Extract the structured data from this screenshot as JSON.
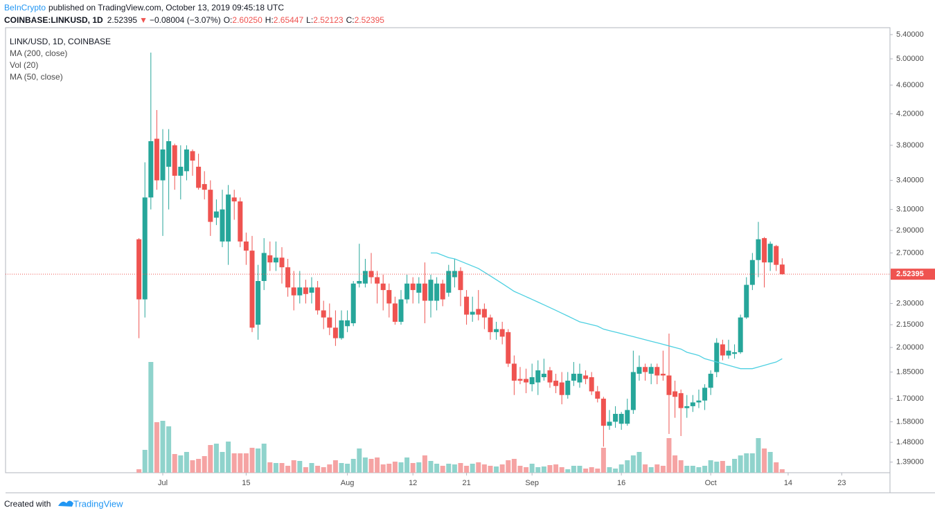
{
  "chart_data": {
    "type": "candlestick",
    "publisher": "BeInCrypto",
    "published": "published on TradingView.com, October 13, 2019 09:45:18 UTC",
    "quote": {
      "symbol": "COINBASE:LINKUSD, 1D",
      "last": "2.52395",
      "arrow": "▼",
      "change": "−0.08004 (−3.07%)",
      "o_label": "O:",
      "o": "2.60250",
      "h_label": "H:",
      "h": "2.65447",
      "l_label": "L:",
      "l": "2.52123",
      "c_label": "C:",
      "c": "2.52395"
    },
    "indicators": [
      "LINK/USD, 1D, COINBASE",
      "MA (200, close)",
      "Vol (20)",
      "MA (50, close)"
    ],
    "footer": {
      "text": "Created with",
      "brand": "TradingView"
    },
    "log_scale": true,
    "up_color": "#26a69a",
    "down_color": "#ef5350",
    "up_volume_color": "#8fd3cc",
    "down_volume_color": "#f5a3a3",
    "ylim": [
      1.344,
      5.52
    ],
    "yticks": [
      {
        "value": 5.4,
        "label": "5.40000"
      },
      {
        "value": 5.0,
        "label": "5.00000"
      },
      {
        "value": 4.6,
        "label": "4.60000"
      },
      {
        "value": 4.2,
        "label": "4.20000"
      },
      {
        "value": 3.8,
        "label": "3.80000"
      },
      {
        "value": 3.4,
        "label": "3.40000"
      },
      {
        "value": 3.1,
        "label": "3.10000"
      },
      {
        "value": 2.9,
        "label": "2.90000"
      },
      {
        "value": 2.7,
        "label": "2.70000"
      },
      {
        "value": 2.3,
        "label": "2.30000"
      },
      {
        "value": 2.15,
        "label": "2.15000"
      },
      {
        "value": 2.0,
        "label": "2.00000"
      },
      {
        "value": 1.85,
        "label": "1.85000"
      },
      {
        "value": 1.7,
        "label": "1.70000"
      },
      {
        "value": 1.58,
        "label": "1.58000"
      },
      {
        "value": 1.48,
        "label": "1.48000"
      },
      {
        "value": 1.39,
        "label": "1.39000"
      }
    ],
    "xlim": [
      -26.4,
      122.1
    ],
    "xticks": [
      {
        "value": 0,
        "label": "Jul"
      },
      {
        "value": 14,
        "label": "15"
      },
      {
        "value": 31,
        "label": "Aug"
      },
      {
        "value": 42,
        "label": "12"
      },
      {
        "value": 51,
        "label": "21"
      },
      {
        "value": 62,
        "label": "Sep"
      },
      {
        "value": 77,
        "label": "16"
      },
      {
        "value": 92,
        "label": "Oct"
      },
      {
        "value": 105,
        "label": "14"
      },
      {
        "value": 114,
        "label": "23"
      }
    ],
    "last_price": {
      "value": 2.52395,
      "label": "2.52395",
      "color": "#ef5350"
    },
    "x": [
      -4,
      -3,
      -2,
      -1,
      0,
      1,
      2,
      3,
      4,
      5,
      6,
      7,
      8,
      9,
      10,
      11,
      12,
      13,
      14,
      15,
      16,
      17,
      18,
      19,
      20,
      21,
      22,
      23,
      24,
      25,
      26,
      27,
      28,
      29,
      30,
      31,
      32,
      33,
      34,
      35,
      36,
      37,
      38,
      39,
      40,
      41,
      42,
      43,
      44,
      45,
      46,
      47,
      48,
      49,
      50,
      51,
      52,
      53,
      54,
      55,
      56,
      57,
      58,
      59,
      60,
      61,
      62,
      63,
      64,
      65,
      66,
      67,
      68,
      69,
      70,
      71,
      72,
      73,
      74,
      75,
      76,
      77,
      78,
      79,
      80,
      81,
      82,
      83,
      84,
      85,
      86,
      87,
      88,
      89,
      90,
      91,
      92,
      93,
      94,
      95,
      96,
      97,
      98,
      99,
      100,
      101,
      102,
      103,
      104
    ],
    "open": [
      2.82,
      2.33,
      3.22,
      3.88,
      3.4,
      3.55,
      3.8,
      3.45,
      3.5,
      3.73,
      3.55,
      3.36,
      3.3,
      3.02,
      2.8,
      2.8,
      3.22,
      3.18,
      2.8,
      2.72,
      2.15,
      2.47,
      2.68,
      2.62,
      2.66,
      2.58,
      2.42,
      2.36,
      2.42,
      2.38,
      2.42,
      2.25,
      2.2,
      2.13,
      2.06,
      2.14,
      2.16,
      2.45,
      2.45,
      2.55,
      2.5,
      2.45,
      2.4,
      2.3,
      2.17,
      2.33,
      2.45,
      2.38,
      2.45,
      2.32,
      2.32,
      2.45,
      2.38,
      2.5,
      2.55,
      2.35,
      2.22,
      2.26,
      2.26,
      2.2,
      2.1,
      2.12,
      2.1,
      1.9,
      1.81,
      1.81,
      1.78,
      1.79,
      1.82,
      1.86,
      1.8,
      1.79,
      1.72,
      1.8,
      1.79,
      1.83,
      1.82,
      1.74,
      1.7,
      1.56,
      1.58,
      1.57,
      1.57,
      1.64,
      1.84,
      1.88,
      1.84,
      1.88,
      1.84,
      1.83,
      1.74,
      1.73,
      1.65,
      1.66,
      1.68,
      1.69,
      1.76,
      1.85,
      2.02,
      1.95,
      1.96,
      1.97,
      2.2,
      2.44,
      2.64,
      2.83,
      2.62,
      2.76,
      2.6025
    ],
    "high": [
      2.83,
      3.6,
      5.1,
      4.25,
      4.0,
      4.0,
      3.82,
      3.8,
      3.8,
      3.75,
      3.7,
      3.5,
      3.4,
      3.2,
      3.3,
      3.35,
      3.3,
      3.22,
      2.88,
      2.85,
      2.6,
      2.83,
      2.8,
      2.8,
      2.75,
      2.65,
      2.55,
      2.55,
      2.48,
      2.5,
      2.47,
      2.32,
      2.3,
      2.25,
      2.25,
      2.25,
      2.47,
      2.78,
      2.65,
      2.7,
      2.55,
      2.52,
      2.45,
      2.35,
      2.4,
      2.52,
      2.5,
      2.5,
      2.62,
      2.52,
      2.5,
      2.48,
      2.6,
      2.65,
      2.58,
      2.4,
      2.35,
      2.4,
      2.3,
      2.22,
      2.17,
      2.17,
      2.12,
      1.95,
      1.88,
      1.87,
      1.9,
      1.92,
      1.93,
      1.88,
      1.84,
      1.85,
      1.85,
      1.91,
      1.9,
      1.86,
      1.85,
      1.77,
      1.71,
      1.64,
      1.66,
      1.63,
      1.7,
      1.98,
      1.95,
      1.9,
      1.9,
      1.9,
      1.98,
      2.09,
      1.8,
      1.75,
      1.72,
      1.72,
      1.75,
      1.78,
      1.86,
      2.06,
      2.05,
      2.05,
      2.02,
      2.22,
      2.5,
      2.7,
      2.98,
      2.84,
      2.8,
      2.77,
      2.65447
    ],
    "low": [
      2.06,
      2.2,
      3.1,
      3.3,
      2.85,
      3.1,
      3.3,
      3.2,
      3.4,
      3.45,
      3.3,
      3.2,
      2.85,
      2.95,
      2.75,
      2.6,
      3.0,
      2.75,
      2.6,
      2.1,
      2.05,
      2.4,
      2.55,
      2.55,
      2.45,
      2.35,
      2.25,
      2.3,
      2.3,
      2.3,
      2.22,
      2.12,
      2.08,
      2.01,
      2.05,
      2.1,
      2.14,
      2.42,
      2.42,
      2.45,
      2.3,
      2.25,
      2.2,
      2.15,
      2.15,
      2.3,
      2.3,
      2.3,
      2.16,
      2.2,
      2.25,
      2.28,
      2.35,
      2.42,
      2.28,
      2.15,
      2.17,
      2.18,
      2.12,
      2.05,
      2.05,
      2.02,
      1.88,
      1.72,
      1.78,
      1.73,
      1.74,
      1.72,
      1.8,
      1.76,
      1.73,
      1.67,
      1.7,
      1.77,
      1.76,
      1.78,
      1.72,
      1.68,
      1.46,
      1.54,
      1.55,
      1.54,
      1.56,
      1.62,
      1.8,
      1.8,
      1.78,
      1.78,
      1.8,
      1.52,
      1.6,
      1.51,
      1.6,
      1.63,
      1.65,
      1.64,
      1.72,
      1.82,
      1.92,
      1.93,
      1.93,
      1.96,
      2.19,
      2.4,
      2.5,
      2.42,
      2.55,
      2.55,
      2.52123
    ],
    "close": [
      2.33,
      3.22,
      3.85,
      3.4,
      3.75,
      3.85,
      3.45,
      3.55,
      3.75,
      3.62,
      3.32,
      3.3,
      2.98,
      3.08,
      3.1,
      3.25,
      3.18,
      2.8,
      2.72,
      2.13,
      2.47,
      2.7,
      2.62,
      2.66,
      2.58,
      2.42,
      2.36,
      2.42,
      2.37,
      2.42,
      2.25,
      2.2,
      2.13,
      2.06,
      2.18,
      2.18,
      2.45,
      2.47,
      2.55,
      2.5,
      2.45,
      2.4,
      2.3,
      2.17,
      2.33,
      2.45,
      2.4,
      2.45,
      2.32,
      2.48,
      2.45,
      2.33,
      2.55,
      2.55,
      2.4,
      2.22,
      2.24,
      2.22,
      2.2,
      2.1,
      2.12,
      2.07,
      1.9,
      1.8,
      1.8,
      1.79,
      1.82,
      1.86,
      1.84,
      1.79,
      1.77,
      1.72,
      1.8,
      1.84,
      1.84,
      1.81,
      1.74,
      1.7,
      1.56,
      1.58,
      1.62,
      1.62,
      1.64,
      1.85,
      1.88,
      1.85,
      1.88,
      1.83,
      1.83,
      1.72,
      1.71,
      1.65,
      1.66,
      1.68,
      1.69,
      1.76,
      1.84,
      2.03,
      1.95,
      1.98,
      1.97,
      2.2,
      2.44,
      2.64,
      2.82,
      2.62,
      2.78,
      2.6,
      2.52395
    ],
    "volume": [
      5,
      33,
      160,
      73,
      75,
      67,
      27,
      25,
      30,
      18,
      20,
      24,
      40,
      42,
      30,
      45,
      28,
      28,
      28,
      36,
      35,
      42,
      15,
      14,
      14,
      10,
      18,
      17,
      8,
      14,
      10,
      8,
      12,
      18,
      14,
      13,
      20,
      35,
      22,
      20,
      22,
      12,
      13,
      16,
      15,
      22,
      14,
      15,
      25,
      17,
      13,
      10,
      13,
      12,
      14,
      10,
      13,
      15,
      12,
      10,
      9,
      12,
      18,
      20,
      10,
      8,
      13,
      8,
      9,
      11,
      12,
      8,
      5,
      10,
      10,
      6,
      8,
      6,
      36,
      8,
      6,
      12,
      18,
      25,
      30,
      12,
      8,
      12,
      10,
      50,
      25,
      18,
      10,
      10,
      8,
      10,
      18,
      16,
      17,
      10,
      20,
      25,
      28,
      28,
      50,
      35,
      30,
      15,
      5
    ],
    "ma": {
      "color": "#4dd0e1",
      "values": [
        null,
        null,
        null,
        null,
        null,
        null,
        null,
        null,
        null,
        null,
        null,
        null,
        null,
        null,
        null,
        null,
        null,
        null,
        null,
        null,
        null,
        null,
        null,
        null,
        null,
        null,
        null,
        null,
        null,
        null,
        null,
        null,
        null,
        null,
        null,
        null,
        null,
        null,
        null,
        null,
        null,
        null,
        null,
        null,
        null,
        null,
        null,
        null,
        null,
        2.7,
        2.7,
        2.68,
        2.66,
        2.65,
        2.63,
        2.61,
        2.59,
        2.57,
        2.54,
        2.51,
        2.48,
        2.45,
        2.42,
        2.39,
        2.37,
        2.35,
        2.33,
        2.31,
        2.29,
        2.27,
        2.25,
        2.23,
        2.21,
        2.19,
        2.17,
        2.16,
        2.15,
        2.14,
        2.12,
        2.11,
        2.1,
        2.09,
        2.08,
        2.07,
        2.06,
        2.05,
        2.04,
        2.03,
        2.02,
        2.01,
        2.0,
        1.99,
        1.97,
        1.96,
        1.95,
        1.93,
        1.92,
        1.91,
        1.9,
        1.89,
        1.88,
        1.87,
        1.87,
        1.87,
        1.88,
        1.89,
        1.9,
        1.91,
        1.93
      ]
    }
  }
}
